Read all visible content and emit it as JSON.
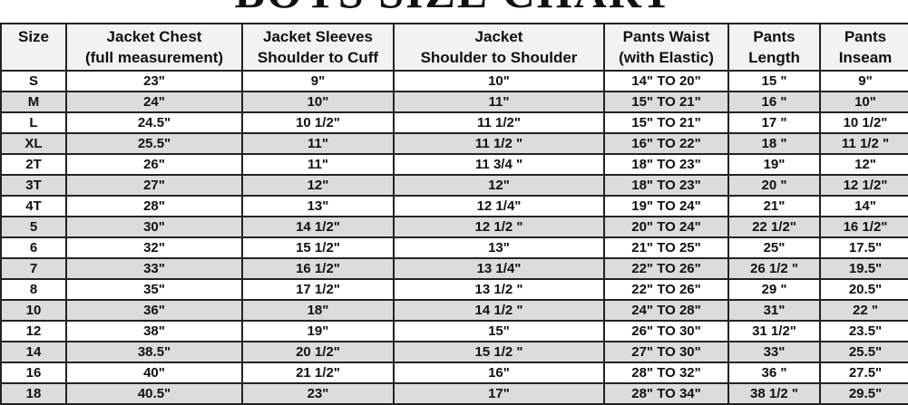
{
  "title": "BOYS SIZE CHART",
  "headers": [
    [
      "Size",
      ""
    ],
    [
      "Jacket Chest",
      "(full measurement)"
    ],
    [
      "Jacket Sleeves",
      "Shoulder to Cuff"
    ],
    [
      "Jacket",
      "Shoulder to Shoulder"
    ],
    [
      "Pants Waist",
      "(with Elastic)"
    ],
    [
      "Pants",
      "Length"
    ],
    [
      "Pants",
      "Inseam"
    ]
  ],
  "rows": [
    [
      "S",
      "23\"",
      "9\"",
      "10\"",
      "14\" TO 20\"",
      "15 \"",
      "9\""
    ],
    [
      "M",
      "24\"",
      "10\"",
      "11\"",
      "15\"  TO 21\"",
      "16 \"",
      "10\""
    ],
    [
      "L",
      "24.5\"",
      "10  1/2\"",
      "11  1/2\"",
      "15\" TO 21\"",
      "17 \"",
      "10  1/2\""
    ],
    [
      "XL",
      "25.5\"",
      "11\"",
      "11  1/2 \"",
      "16\" TO 22\"",
      "18 \"",
      "11  1/2 \""
    ],
    [
      "2T",
      "26\"",
      "11\"",
      "11  3/4 \"",
      "18\" TO 23\"",
      "19\"",
      "12\""
    ],
    [
      "3T",
      "27\"",
      "12\"",
      "12\"",
      "18\" TO 23\"",
      "20 \"",
      "12  1/2\""
    ],
    [
      "4T",
      "28\"",
      "13\"",
      "12 1/4\"",
      "19\" TO 24\"",
      "21\"",
      "14\""
    ],
    [
      "5",
      "30\"",
      "14 1/2\"",
      "12  1/2 \"",
      "20\" TO 24\"",
      "22 1/2\"",
      "16  1/2\""
    ],
    [
      "6",
      "32\"",
      "15 1/2\"",
      "13\"",
      "21\" TO 25\"",
      "25\"",
      "17.5\""
    ],
    [
      "7",
      "33\"",
      "16 1/2\"",
      "13  1/4\"",
      "22\" TO 26\"",
      "26 1/2 \"",
      "19.5\""
    ],
    [
      "8",
      "35\"",
      "17 1/2\"",
      "13  1/2 \"",
      "22\" TO 26\"",
      "29 \"",
      "20.5\""
    ],
    [
      "10",
      "36\"",
      "18\"",
      "14  1/2 \"",
      "24\" TO 28\"",
      "31\"",
      "22 \""
    ],
    [
      "12",
      "38\"",
      "19\"",
      "15\"",
      "26\" TO 30\"",
      "31 1/2\"",
      "23.5\""
    ],
    [
      "14",
      "38.5\"",
      "20 1/2\"",
      "15  1/2 \"",
      "27\" TO 30\"",
      "33\"",
      "25.5\""
    ],
    [
      "16",
      "40\"",
      "21 1/2\"",
      "16\"",
      "28\" TO 32\"",
      "36 \"",
      "27.5\""
    ],
    [
      "18",
      "40.5\"",
      "23\"",
      "17\"",
      "28\" TO 34\"",
      "38 1/2 \"",
      "29.5\""
    ]
  ],
  "colors": {
    "shaded_row": "#dcdcdc",
    "header_bg": "#f2f2f2",
    "border": "#222222"
  }
}
